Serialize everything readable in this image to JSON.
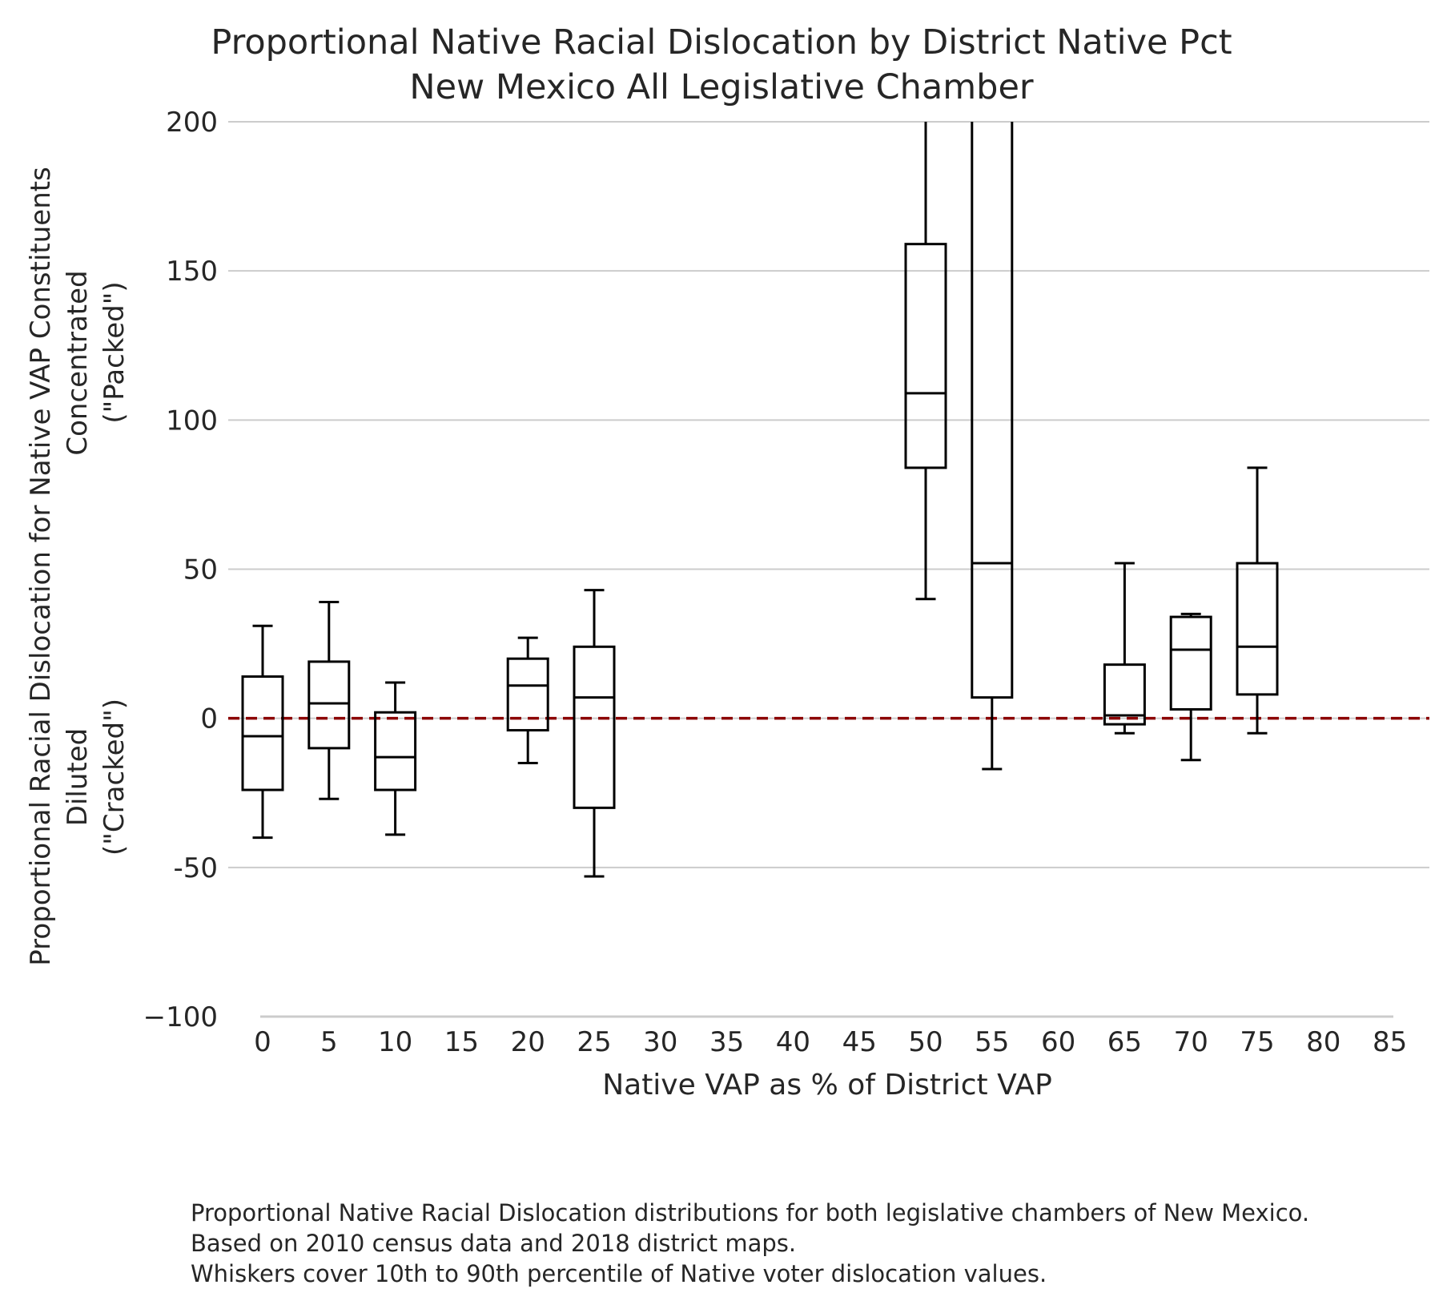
{
  "chart_data": {
    "type": "boxplot",
    "title": [
      "Proportional Native Racial Dislocation by District Native Pct",
      "New Mexico All Legislative Chamber"
    ],
    "xlabel": "Native VAP as % of District VAP",
    "ylabel": {
      "top": "Proportional Racial Dislocation for Native VAP Constituents",
      "packed": [
        "Concentrated",
        "(\"Packed\")"
      ],
      "cracked": [
        "Diluted",
        "(\"Cracked\")"
      ]
    },
    "ylim": [
      -100,
      200
    ],
    "yticks": [
      -100,
      -50,
      0,
      50,
      100,
      150,
      200
    ],
    "ytick_labels": [
      "−100",
      "-50",
      "0",
      "50",
      "100",
      "150",
      "200"
    ],
    "categories": [
      "0",
      "5",
      "10",
      "15",
      "20",
      "25",
      "30",
      "35",
      "40",
      "45",
      "50",
      "55",
      "60",
      "65",
      "70",
      "75",
      "80",
      "85"
    ],
    "boxes": [
      {
        "x": "0",
        "whisker_low": -40,
        "q1": -24,
        "median": -6,
        "q3": 14,
        "whisker_high": 31
      },
      {
        "x": "5",
        "whisker_low": -27,
        "q1": -10,
        "median": 5,
        "q3": 19,
        "whisker_high": 39
      },
      {
        "x": "10",
        "whisker_low": -39,
        "q1": -24,
        "median": -13,
        "q3": 2,
        "whisker_high": 12
      },
      {
        "x": "20",
        "whisker_low": -15,
        "q1": -4,
        "median": 11,
        "q3": 20,
        "whisker_high": 27
      },
      {
        "x": "25",
        "whisker_low": -53,
        "q1": -30,
        "median": 7,
        "q3": 24,
        "whisker_high": 43
      },
      {
        "x": "50",
        "whisker_low": 40,
        "q1": 84,
        "median": 109,
        "q3": 159,
        "whisker_high": 200
      },
      {
        "x": "55",
        "whisker_low": -17,
        "q1": 7,
        "median": 52,
        "q3": 200,
        "whisker_high": 200
      },
      {
        "x": "65",
        "whisker_low": -5,
        "q1": -2,
        "median": 1,
        "q3": 18,
        "whisker_high": 52
      },
      {
        "x": "70",
        "whisker_low": -14,
        "q1": 3,
        "median": 23,
        "q3": 34,
        "whisker_high": 35
      },
      {
        "x": "75",
        "whisker_low": -5,
        "q1": 8,
        "median": 24,
        "q3": 52,
        "whisker_high": 84
      }
    ],
    "reference_line": {
      "y": 0,
      "color": "#8b0000",
      "style": "dashed"
    },
    "grid": "horizontal",
    "colors": {
      "box": "#000000",
      "grid": "#cccccc",
      "text": "#262626"
    }
  },
  "footnote": [
    "Proportional Native Racial Dislocation distributions for both legislative chambers of New Mexico.",
    "Based on 2010 census data and 2018 district maps.",
    "Whiskers cover 10th to 90th percentile of Native voter dislocation values."
  ]
}
